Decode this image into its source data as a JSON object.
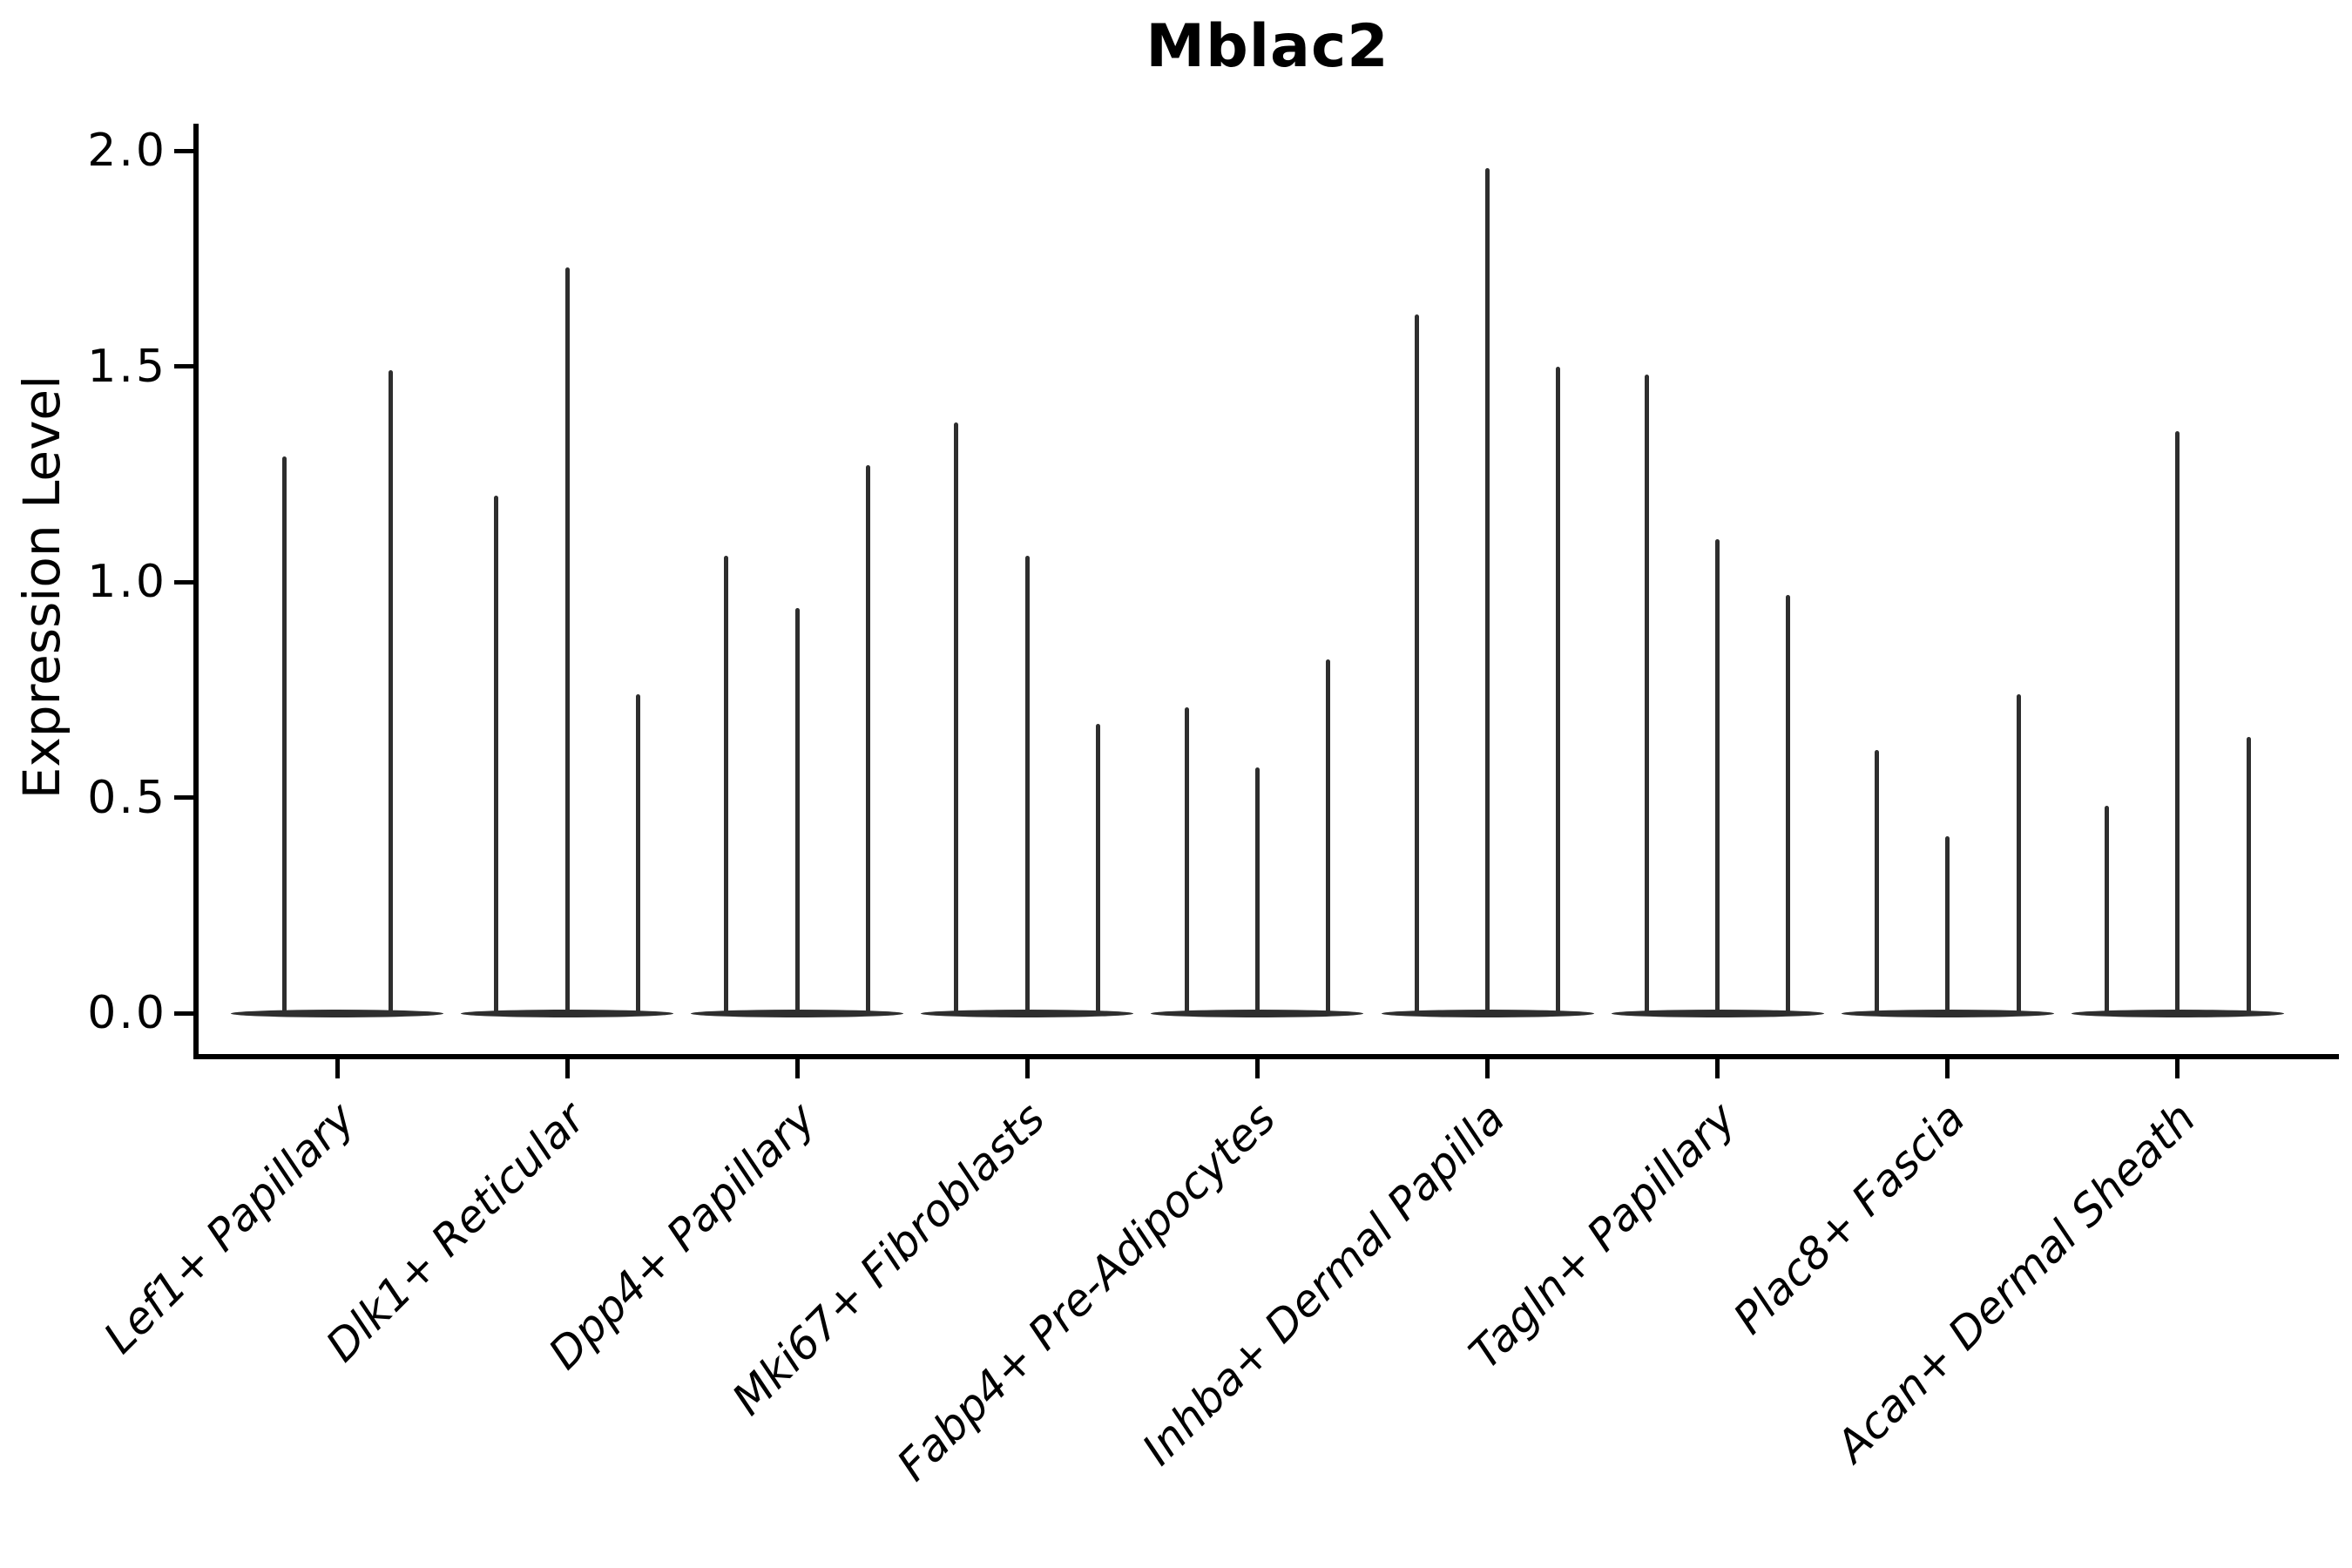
{
  "title": "Mblac2",
  "y_axis": {
    "label": "Expression Level",
    "tick_labels": [
      "2.0",
      "1.5",
      "1.0",
      "0.5",
      "0.0"
    ],
    "tick_values": [
      2.0,
      1.5,
      1.0,
      0.5,
      0.0
    ]
  },
  "colors": {
    "violin": "#2e2e2e",
    "axis": "#000000",
    "text": "#000000",
    "background": "#ffffff"
  },
  "chart_data": {
    "type": "violin",
    "title": "Mblac2",
    "xlabel": "",
    "ylabel": "Expression Level",
    "ylim": [
      0.0,
      2.0
    ],
    "grid": false,
    "legend": "none",
    "note": "Each category shows narrow spike-shaped violins (max expression per violin) with a flattened density base at 0.",
    "categories": [
      "Lef1+ Papillary",
      "Dlk1+ Reticular",
      "Dpp4+ Papillary",
      "Mki67+ Fibroblasts",
      "Fabp4+ Pre-Adipocytes",
      "Inhba+ Dermal Papilla",
      "Tagln+ Papillary",
      "Plac8+ Fascia",
      "Acan+ Dermal Sheath"
    ],
    "violin_maxima": [
      [
        1.29,
        1.49
      ],
      [
        1.2,
        1.73,
        0.74
      ],
      [
        1.06,
        0.94,
        1.27
      ],
      [
        1.37,
        1.06,
        0.67
      ],
      [
        0.71,
        0.57,
        0.82
      ],
      [
        1.62,
        1.96,
        1.5
      ],
      [
        1.48,
        1.1,
        0.97
      ],
      [
        0.61,
        0.41,
        0.74
      ],
      [
        0.48,
        1.35,
        0.64
      ]
    ]
  }
}
